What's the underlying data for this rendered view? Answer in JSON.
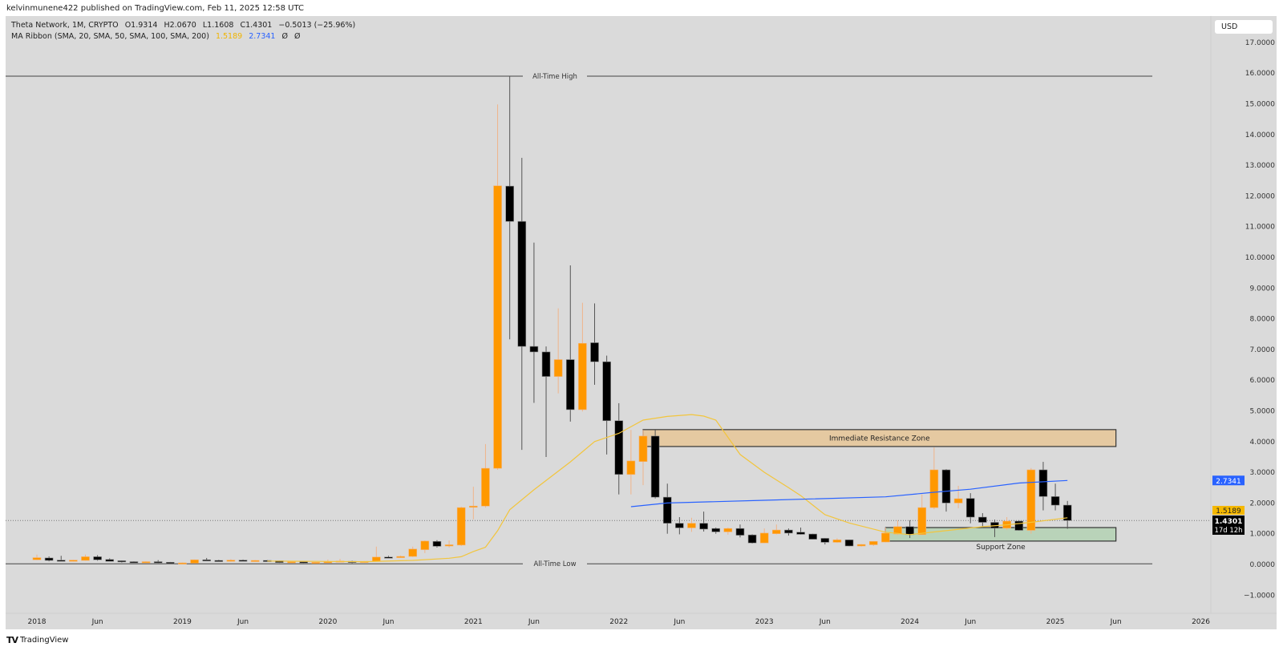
{
  "header": {
    "published": "kelvinmunene422 published on TradingView.com, Feb 11, 2025 12:58 UTC"
  },
  "legend": {
    "symbol": "Theta Network, 1M, CRYPTO",
    "open": "O1.9314",
    "high": "H2.0670",
    "low": "L1.1608",
    "close": "C1.4301",
    "change": "−0.5013 (−25.96%)",
    "ma_label": "MA Ribbon (SMA, 20, SMA, 50, SMA, 100, SMA, 200)",
    "ma1_value": "1.5189",
    "ma2_value": "2.7341",
    "ma3_value": "Ø",
    "ma4_value": "Ø"
  },
  "axis": {
    "currency": "USD"
  },
  "footer": {
    "logo_text": "TradingView",
    "logo_icon": "tradingview-logo"
  },
  "chart_data": {
    "type": "candlestick",
    "interval": "1M",
    "colors": {
      "up": "#ff9800",
      "down": "#000000",
      "ma20": "#f2c53d",
      "ma50": "#2962ff",
      "resistance": "#e5c9a1",
      "support": "#b9d3b9",
      "background": "#dadada"
    },
    "ylim": [
      -1.4,
      17.5
    ],
    "y_ticks": [
      "17.0000",
      "16.0000",
      "15.0000",
      "14.0000",
      "13.0000",
      "12.0000",
      "11.0000",
      "10.0000",
      "9.0000",
      "8.0000",
      "7.0000",
      "6.0000",
      "5.0000",
      "4.0000",
      "3.0000",
      "2.0000",
      "1.0000",
      "0.0000",
      "−1.0000"
    ],
    "x_ticks": [
      {
        "t": "2018-01",
        "label": "2018"
      },
      {
        "t": "2018-06",
        "label": "Jun"
      },
      {
        "t": "2019-01",
        "label": "2019"
      },
      {
        "t": "2019-06",
        "label": "Jun"
      },
      {
        "t": "2020-01",
        "label": "2020"
      },
      {
        "t": "2020-06",
        "label": "Jun"
      },
      {
        "t": "2021-01",
        "label": "2021"
      },
      {
        "t": "2021-06",
        "label": "Jun"
      },
      {
        "t": "2022-01",
        "label": "2022"
      },
      {
        "t": "2022-06",
        "label": "Jun"
      },
      {
        "t": "2023-01",
        "label": "2023"
      },
      {
        "t": "2023-06",
        "label": "Jun"
      },
      {
        "t": "2024-01",
        "label": "2024"
      },
      {
        "t": "2024-06",
        "label": "Jun"
      },
      {
        "t": "2025-01",
        "label": "2025"
      },
      {
        "t": "2025-06",
        "label": "Jun"
      },
      {
        "t": "2026-01",
        "label": "2026"
      }
    ],
    "candles_fields": [
      "t",
      "open",
      "high",
      "low",
      "close"
    ],
    "candles": [
      [
        "2018-01",
        0.15,
        0.32,
        0.14,
        0.22
      ],
      [
        "2018-02",
        0.21,
        0.26,
        0.1,
        0.13
      ],
      [
        "2018-03",
        0.14,
        0.28,
        0.1,
        0.1
      ],
      [
        "2018-04",
        0.1,
        0.15,
        0.09,
        0.14
      ],
      [
        "2018-05",
        0.13,
        0.32,
        0.12,
        0.25
      ],
      [
        "2018-06",
        0.25,
        0.3,
        0.12,
        0.15
      ],
      [
        "2018-07",
        0.16,
        0.2,
        0.1,
        0.1
      ],
      [
        "2018-08",
        0.12,
        0.13,
        0.06,
        0.09
      ],
      [
        "2018-09",
        0.09,
        0.1,
        0.06,
        0.07
      ],
      [
        "2018-10",
        0.07,
        0.1,
        0.06,
        0.09
      ],
      [
        "2018-11",
        0.09,
        0.14,
        0.04,
        0.07
      ],
      [
        "2018-12",
        0.07,
        0.08,
        0.02,
        0.03
      ],
      [
        "2019-01",
        0.03,
        0.06,
        0.02,
        0.05
      ],
      [
        "2019-02",
        0.04,
        0.16,
        0.04,
        0.15
      ],
      [
        "2019-03",
        0.15,
        0.21,
        0.11,
        0.12
      ],
      [
        "2019-04",
        0.13,
        0.15,
        0.1,
        0.11
      ],
      [
        "2019-05",
        0.1,
        0.17,
        0.09,
        0.14
      ],
      [
        "2019-06",
        0.14,
        0.16,
        0.11,
        0.12
      ],
      [
        "2019-07",
        0.12,
        0.14,
        0.1,
        0.13
      ],
      [
        "2019-08",
        0.13,
        0.14,
        0.11,
        0.12
      ],
      [
        "2019-09",
        0.12,
        0.13,
        0.05,
        0.06
      ],
      [
        "2019-10",
        0.07,
        0.1,
        0.06,
        0.09
      ],
      [
        "2019-11",
        0.09,
        0.1,
        0.04,
        0.05
      ],
      [
        "2019-12",
        0.05,
        0.08,
        0.04,
        0.07
      ],
      [
        "2020-01",
        0.06,
        0.16,
        0.06,
        0.09
      ],
      [
        "2020-02",
        0.08,
        0.18,
        0.08,
        0.11
      ],
      [
        "2020-03",
        0.1,
        0.12,
        0.04,
        0.06
      ],
      [
        "2020-04",
        0.06,
        0.11,
        0.05,
        0.1
      ],
      [
        "2020-05",
        0.1,
        0.58,
        0.09,
        0.24
      ],
      [
        "2020-06",
        0.24,
        0.28,
        0.21,
        0.22
      ],
      [
        "2020-07",
        0.22,
        0.29,
        0.21,
        0.26
      ],
      [
        "2020-08",
        0.26,
        0.58,
        0.24,
        0.5
      ],
      [
        "2020-09",
        0.48,
        0.78,
        0.37,
        0.76
      ],
      [
        "2020-10",
        0.75,
        0.79,
        0.55,
        0.59
      ],
      [
        "2020-11",
        0.6,
        0.78,
        0.55,
        0.64
      ],
      [
        "2020-12",
        0.63,
        1.88,
        0.6,
        1.85
      ],
      [
        "2021-01",
        1.86,
        2.53,
        1.47,
        1.9
      ],
      [
        "2021-02",
        1.9,
        3.92,
        1.85,
        3.13
      ],
      [
        "2021-03",
        3.13,
        14.98,
        3.08,
        12.33
      ],
      [
        "2021-04",
        12.32,
        15.9,
        7.33,
        11.17
      ],
      [
        "2021-05",
        11.17,
        13.24,
        3.73,
        7.1
      ],
      [
        "2021-06",
        7.1,
        10.48,
        5.26,
        6.92
      ],
      [
        "2021-07",
        6.92,
        7.1,
        3.5,
        6.12
      ],
      [
        "2021-08",
        6.12,
        8.34,
        5.57,
        6.67
      ],
      [
        "2021-09",
        6.67,
        9.74,
        4.65,
        5.04
      ],
      [
        "2021-10",
        5.04,
        8.52,
        4.98,
        7.2
      ],
      [
        "2021-11",
        7.22,
        8.5,
        5.85,
        6.6
      ],
      [
        "2021-12",
        6.6,
        6.8,
        3.58,
        4.68
      ],
      [
        "2022-01",
        4.68,
        5.25,
        2.28,
        2.93
      ],
      [
        "2022-02",
        2.93,
        4.38,
        2.28,
        3.37
      ],
      [
        "2022-03",
        3.35,
        4.38,
        2.58,
        4.18
      ],
      [
        "2022-04",
        4.18,
        4.38,
        2.15,
        2.19
      ],
      [
        "2022-05",
        2.19,
        2.63,
        1.0,
        1.34
      ],
      [
        "2022-06",
        1.34,
        1.54,
        0.98,
        1.19
      ],
      [
        "2022-07",
        1.19,
        1.52,
        1.06,
        1.34
      ],
      [
        "2022-08",
        1.34,
        1.72,
        1.07,
        1.15
      ],
      [
        "2022-09",
        1.17,
        1.2,
        1.0,
        1.06
      ],
      [
        "2022-10",
        1.06,
        1.2,
        0.97,
        1.17
      ],
      [
        "2022-11",
        1.17,
        1.3,
        0.88,
        0.95
      ],
      [
        "2022-12",
        0.96,
        0.98,
        0.68,
        0.7
      ],
      [
        "2023-01",
        0.7,
        1.17,
        0.69,
        1.02
      ],
      [
        "2023-02",
        1.0,
        1.3,
        0.98,
        1.12
      ],
      [
        "2023-03",
        1.12,
        1.17,
        0.94,
        1.02
      ],
      [
        "2023-04",
        1.05,
        1.2,
        0.97,
        0.98
      ],
      [
        "2023-05",
        0.99,
        1.0,
        0.82,
        0.82
      ],
      [
        "2023-06",
        0.85,
        0.86,
        0.65,
        0.72
      ],
      [
        "2023-07",
        0.72,
        0.85,
        0.7,
        0.8
      ],
      [
        "2023-08",
        0.8,
        0.81,
        0.59,
        0.6
      ],
      [
        "2023-09",
        0.6,
        0.66,
        0.58,
        0.65
      ],
      [
        "2023-10",
        0.64,
        0.76,
        0.6,
        0.75
      ],
      [
        "2023-11",
        0.73,
        1.2,
        0.72,
        1.02
      ],
      [
        "2023-12",
        0.99,
        1.44,
        0.96,
        1.23
      ],
      [
        "2024-01",
        1.23,
        1.44,
        0.86,
        0.97
      ],
      [
        "2024-02",
        0.97,
        2.28,
        0.96,
        1.85
      ],
      [
        "2024-03",
        1.85,
        3.81,
        1.8,
        3.08
      ],
      [
        "2024-04",
        3.08,
        3.1,
        1.72,
        2.0
      ],
      [
        "2024-05",
        2.0,
        2.56,
        1.83,
        2.14
      ],
      [
        "2024-06",
        2.15,
        2.32,
        1.34,
        1.54
      ],
      [
        "2024-07",
        1.54,
        1.67,
        1.2,
        1.37
      ],
      [
        "2024-08",
        1.37,
        1.46,
        0.89,
        1.18
      ],
      [
        "2024-09",
        1.18,
        1.54,
        1.12,
        1.41
      ],
      [
        "2024-10",
        1.41,
        1.44,
        1.1,
        1.11
      ],
      [
        "2024-11",
        1.11,
        3.14,
        1.0,
        3.08
      ],
      [
        "2024-12",
        3.08,
        3.34,
        1.76,
        2.21
      ],
      [
        "2025-01",
        2.21,
        2.63,
        1.76,
        1.93
      ],
      [
        "2025-02",
        1.9314,
        2.067,
        1.1608,
        1.4301
      ]
    ],
    "ma20": [
      [
        "2019-08",
        0.11
      ],
      [
        "2019-12",
        0.1
      ],
      [
        "2020-04",
        0.09
      ],
      [
        "2020-08",
        0.13
      ],
      [
        "2020-11",
        0.2
      ],
      [
        "2020-12",
        0.25
      ],
      [
        "2021-01",
        0.42
      ],
      [
        "2021-02",
        0.56
      ],
      [
        "2021-03",
        1.1
      ],
      [
        "2021-04",
        1.78
      ],
      [
        "2021-06",
        2.43
      ],
      [
        "2021-09",
        3.34
      ],
      [
        "2021-11",
        4.0
      ],
      [
        "2022-01",
        4.27
      ],
      [
        "2022-03",
        4.7
      ],
      [
        "2022-05",
        4.82
      ],
      [
        "2022-07",
        4.88
      ],
      [
        "2022-08",
        4.83
      ],
      [
        "2022-09",
        4.7
      ],
      [
        "2022-11",
        3.58
      ],
      [
        "2023-01",
        3.0
      ],
      [
        "2023-03",
        2.5
      ],
      [
        "2023-04",
        2.24
      ],
      [
        "2023-06",
        1.62
      ],
      [
        "2023-08",
        1.35
      ],
      [
        "2023-11",
        1.05
      ],
      [
        "2024-01",
        0.97
      ],
      [
        "2024-04",
        1.1
      ],
      [
        "2024-07",
        1.23
      ],
      [
        "2024-09",
        1.29
      ],
      [
        "2024-11",
        1.37
      ],
      [
        "2025-02",
        1.5189
      ]
    ],
    "ma50": [
      [
        "2022-02",
        1.88
      ],
      [
        "2022-05",
        2.0
      ],
      [
        "2023-01",
        2.09
      ],
      [
        "2023-11",
        2.2
      ],
      [
        "2024-03",
        2.35
      ],
      [
        "2024-06",
        2.45
      ],
      [
        "2024-10",
        2.65
      ],
      [
        "2025-02",
        2.7341
      ]
    ],
    "annotations": {
      "ath": {
        "label": "All-Time High",
        "price": 15.9,
        "end": "2025-09"
      },
      "atl": {
        "label": "All-Time Low",
        "price": 0.02,
        "end": "2025-09"
      },
      "resistance": {
        "label": "Immediate Resistance Zone",
        "top": 4.39,
        "bottom": 3.84,
        "start": "2022-03",
        "end": "2025-06"
      },
      "support": {
        "label": "Support Zone",
        "top": 1.2,
        "bottom": 0.76,
        "start": "2023-11",
        "end": "2025-06"
      }
    },
    "price_labels": {
      "ma50": "2.7341",
      "ma20": "1.5189",
      "last": "1.4301",
      "countdown": "17d 12h",
      "last_price": 1.4301
    }
  }
}
